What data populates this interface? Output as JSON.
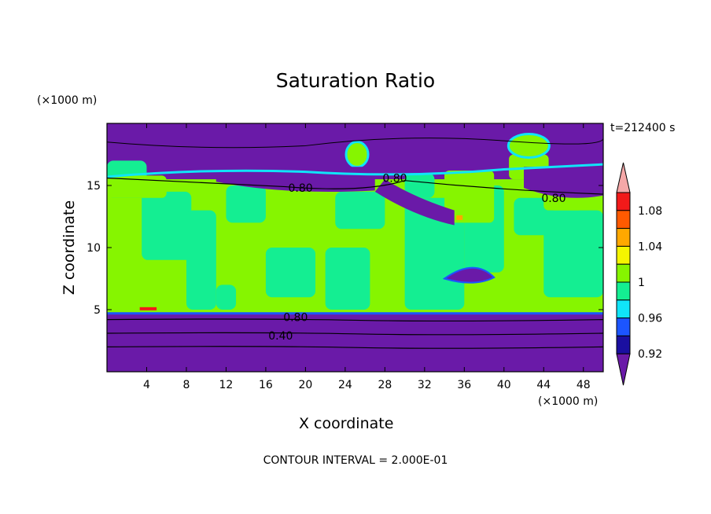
{
  "chart_data": {
    "type": "heatmap",
    "title": "Saturation Ratio",
    "xlabel": "X coordinate",
    "ylabel": "Z coordinate",
    "x_multiplier": "(×1000 m)",
    "y_multiplier": "(×1000 m)",
    "time_label": "t=212400 s",
    "footer": "CONTOUR INTERVAL = 2.000E-01",
    "xlim": [
      0,
      50
    ],
    "ylim": [
      0,
      20
    ],
    "xticks": [
      4,
      8,
      12,
      16,
      20,
      24,
      28,
      32,
      36,
      40,
      44,
      48
    ],
    "yticks": [
      5,
      10,
      15
    ],
    "grid": false,
    "colorbar": {
      "position": "right",
      "levels": [
        {
          "label": "",
          "color": "#6a1aa8"
        },
        {
          "label": "0.92",
          "color": "#1a0fa0"
        },
        {
          "label": "",
          "color": "#1c55ff"
        },
        {
          "label": "0.96",
          "color": "#10e4f8"
        },
        {
          "label": "",
          "color": "#14ee92"
        },
        {
          "label": "1",
          "color": "#86f500"
        },
        {
          "label": "",
          "color": "#f5f500"
        },
        {
          "label": "1.04",
          "color": "#ffa800"
        },
        {
          "label": "",
          "color": "#ff5a00"
        },
        {
          "label": "1.08",
          "color": "#f21a1a"
        },
        {
          "label": "",
          "color": "#f5a8a8"
        }
      ]
    },
    "contour_labels": [
      {
        "text": "0.80",
        "x": 19.5,
        "y": 14.8
      },
      {
        "text": "0.80",
        "x": 29.0,
        "y": 15.6
      },
      {
        "text": "0.80",
        "x": 45.0,
        "y": 14.0
      },
      {
        "text": "0.80",
        "x": 19.0,
        "y": 4.4
      },
      {
        "text": "0.40",
        "x": 17.5,
        "y": 2.9
      }
    ],
    "regions": {
      "dry_layer_top": 4.5,
      "cloud_layer_base": 4.7,
      "cloud_layer_top": 15.5,
      "upper_dry_base": 16.5
    }
  }
}
